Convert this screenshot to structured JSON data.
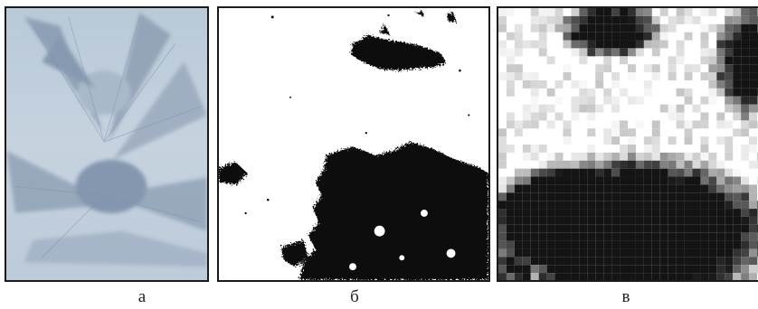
{
  "figure": {
    "panels": [
      {
        "caption": "а",
        "kind": "photo"
      },
      {
        "caption": "б",
        "kind": "binary"
      },
      {
        "caption": "в",
        "kind": "pixelated"
      }
    ]
  }
}
